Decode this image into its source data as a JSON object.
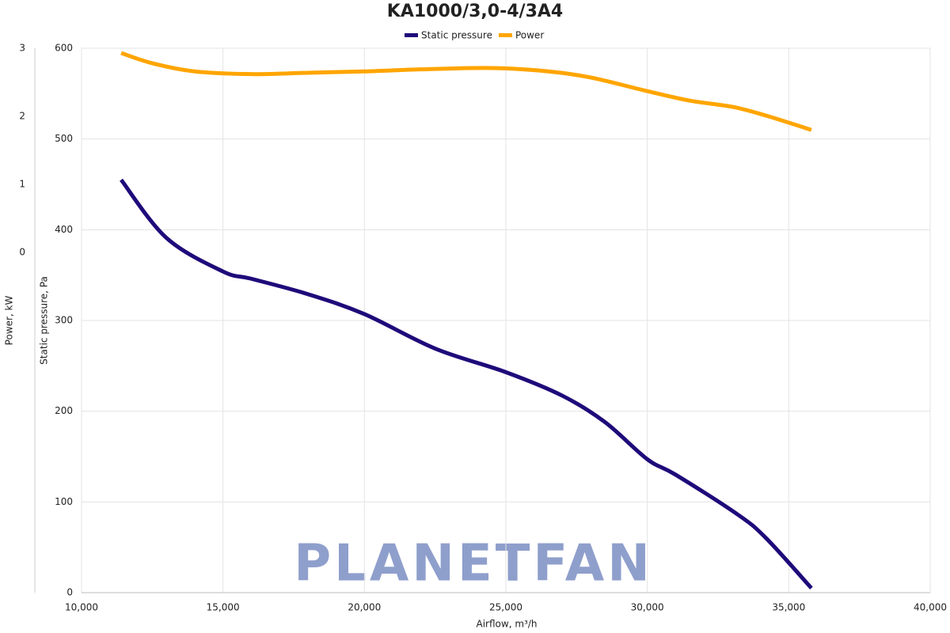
{
  "chart_data": {
    "type": "line",
    "title": "KA1000/3,0-4/3A4",
    "x_label": "Airflow, m³/h",
    "y_label": "Static pressure, Pa",
    "y2_label": "Power, kW",
    "watermark": "PLANETFAN",
    "xlim": [
      10000,
      40000
    ],
    "xticks": [
      {
        "value": 10000,
        "label": "10,000"
      },
      {
        "value": 15000,
        "label": "15,000"
      },
      {
        "value": 20000,
        "label": "20,000"
      },
      {
        "value": 25000,
        "label": "25,000"
      },
      {
        "value": 30000,
        "label": "30,000"
      },
      {
        "value": 35000,
        "label": "35,000"
      },
      {
        "value": 40000,
        "label": "40,000"
      }
    ],
    "ylim": [
      0,
      600
    ],
    "yticks": [
      0,
      100,
      200,
      300,
      400,
      500,
      600
    ],
    "y2lim": [
      -5,
      3
    ],
    "y2ticks": [
      0,
      1,
      2,
      3
    ],
    "grid": true,
    "legend": "top",
    "series": [
      {
        "name": "Static pressure",
        "color": "#1f0a7a",
        "x": [
          11400,
          13000,
          15000,
          16000,
          18000,
          20000,
          22500,
          25000,
          27000,
          28500,
          30000,
          31000,
          33200,
          34200,
          35800
        ],
        "values": [
          455,
          391,
          354,
          346,
          329,
          307,
          269,
          243,
          217,
          188,
          147,
          130,
          86,
          60,
          5
        ]
      },
      {
        "name": "Power",
        "color": "#ffa500",
        "axis": "y2",
        "x": [
          11400,
          12500,
          14000,
          16000,
          18000,
          20000,
          22000,
          24500,
          26500,
          28000,
          30000,
          31500,
          33000,
          34200,
          35800
        ],
        "values": [
          2.93,
          2.78,
          2.66,
          2.62,
          2.64,
          2.66,
          2.69,
          2.71,
          2.66,
          2.57,
          2.37,
          2.23,
          2.14,
          2.01,
          1.8
        ]
      }
    ]
  }
}
